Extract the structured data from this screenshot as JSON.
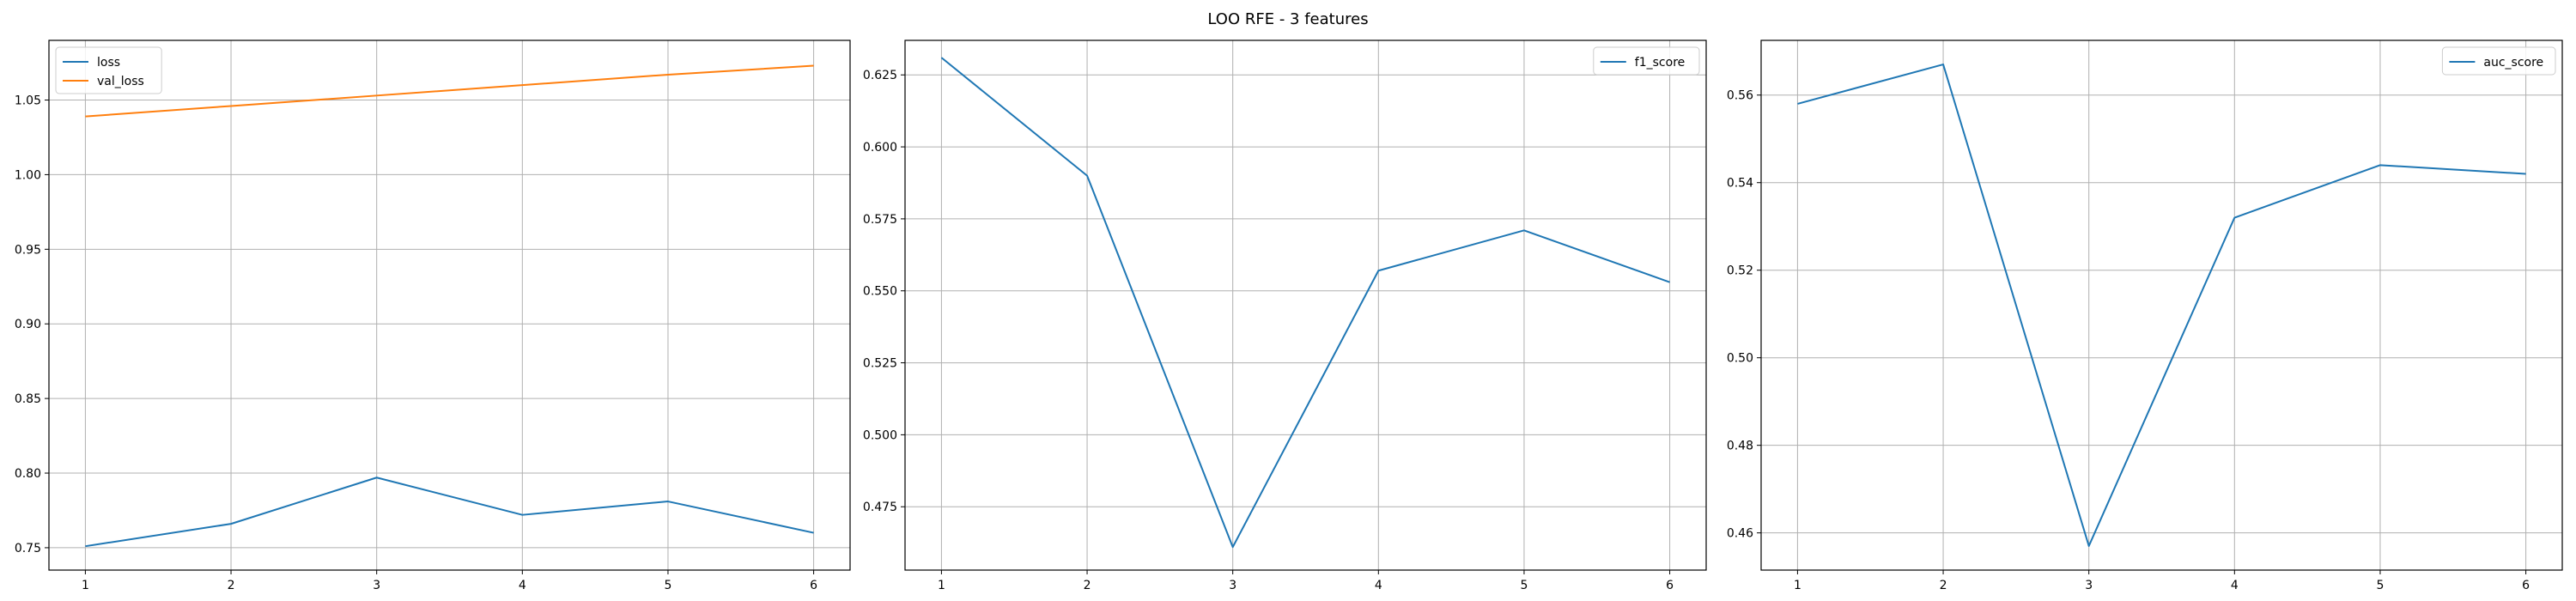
{
  "figure": {
    "title": "LOO RFE - 3 features"
  },
  "chart_data": [
    {
      "type": "line",
      "title": "",
      "xlabel": "",
      "ylabel": "",
      "x": [
        1,
        2,
        3,
        4,
        5,
        6
      ],
      "xticks": [
        1,
        2,
        3,
        4,
        5,
        6
      ],
      "xlim": [
        0.75,
        6.25
      ],
      "ylim": [
        0.735,
        1.09
      ],
      "yticks": [
        0.75,
        0.8,
        0.85,
        0.9,
        0.95,
        1.0,
        1.05
      ],
      "ytick_labels": [
        "0.75",
        "0.80",
        "0.85",
        "0.90",
        "0.95",
        "1.00",
        "1.05"
      ],
      "grid": true,
      "legend_position": "upper left",
      "series": [
        {
          "name": "loss",
          "color": "#1f77b4",
          "values": [
            0.751,
            0.766,
            0.797,
            0.772,
            0.781,
            0.76
          ]
        },
        {
          "name": "val_loss",
          "color": "#ff7f0e",
          "values": [
            1.039,
            1.046,
            1.053,
            1.06,
            1.067,
            1.073
          ]
        }
      ]
    },
    {
      "type": "line",
      "title": "",
      "xlabel": "",
      "ylabel": "",
      "x": [
        1,
        2,
        3,
        4,
        5,
        6
      ],
      "xticks": [
        1,
        2,
        3,
        4,
        5,
        6
      ],
      "xlim": [
        0.75,
        6.25
      ],
      "ylim": [
        0.453,
        0.637
      ],
      "yticks": [
        0.475,
        0.5,
        0.525,
        0.55,
        0.575,
        0.6,
        0.625
      ],
      "ytick_labels": [
        "0.475",
        "0.500",
        "0.525",
        "0.550",
        "0.575",
        "0.600",
        "0.625"
      ],
      "grid": true,
      "legend_position": "upper right",
      "series": [
        {
          "name": "f1_score",
          "color": "#1f77b4",
          "values": [
            0.631,
            0.59,
            0.461,
            0.557,
            0.571,
            0.553
          ]
        }
      ]
    },
    {
      "type": "line",
      "title": "",
      "xlabel": "",
      "ylabel": "",
      "x": [
        1,
        2,
        3,
        4,
        5,
        6
      ],
      "xticks": [
        1,
        2,
        3,
        4,
        5,
        6
      ],
      "xlim": [
        0.75,
        6.25
      ],
      "ylim": [
        0.4515,
        0.5725
      ],
      "yticks": [
        0.46,
        0.48,
        0.5,
        0.52,
        0.54,
        0.56
      ],
      "ytick_labels": [
        "0.46",
        "0.48",
        "0.50",
        "0.52",
        "0.54",
        "0.56"
      ],
      "grid": true,
      "legend_position": "upper right",
      "series": [
        {
          "name": "auc_score",
          "color": "#1f77b4",
          "values": [
            0.558,
            0.567,
            0.457,
            0.532,
            0.544,
            0.542
          ]
        }
      ]
    }
  ]
}
